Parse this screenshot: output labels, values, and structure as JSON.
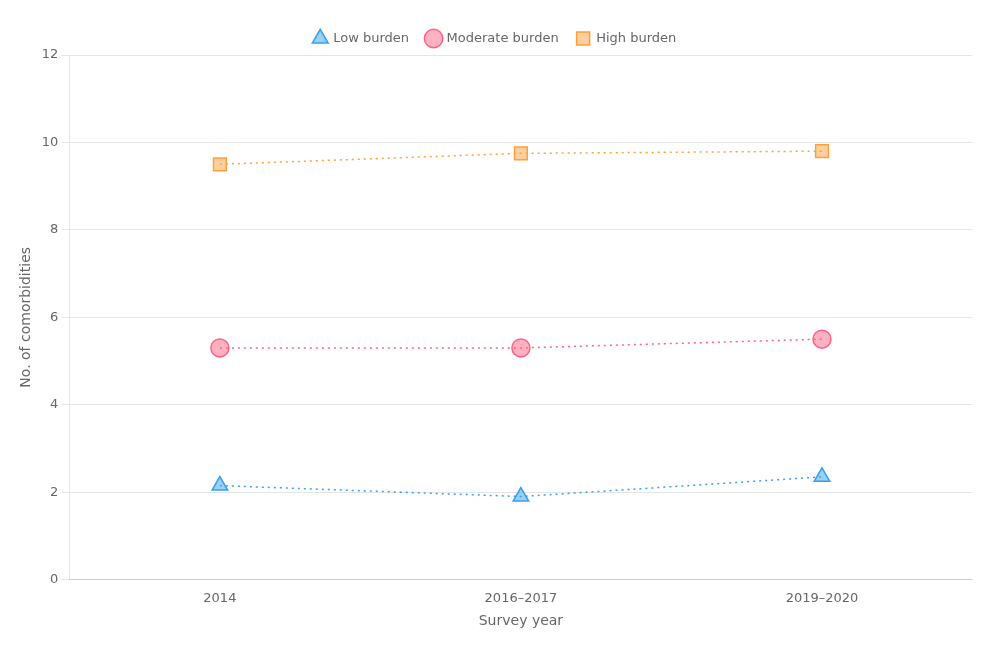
{
  "chart_data": {
    "type": "line",
    "xlabel": "Survey year",
    "ylabel": "No. of comorbidities",
    "categories": [
      "2014",
      "2016–2017",
      "2019–2020"
    ],
    "series": [
      {
        "name": "Low burden",
        "values": [
          2.15,
          1.9,
          2.35
        ],
        "marker": "triangle",
        "line_style": "dotted"
      },
      {
        "name": "Moderate burden",
        "values": [
          5.3,
          5.3,
          5.5
        ],
        "marker": "circle",
        "line_style": "dotted"
      },
      {
        "name": "High burden",
        "values": [
          9.5,
          9.75,
          9.8
        ],
        "marker": "square",
        "line_style": "dotted"
      }
    ],
    "ylim": [
      0,
      12
    ],
    "yticks": [
      0,
      2,
      4,
      6,
      8,
      10,
      12
    ],
    "grid": "y",
    "legend": "top"
  }
}
